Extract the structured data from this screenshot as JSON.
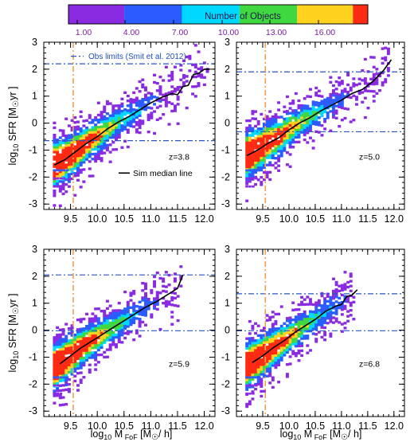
{
  "colorbar": {
    "title": "Number of Objects",
    "tick_labels": [
      "1.00",
      "4.00",
      "7.00",
      "10.00",
      "13.00",
      "16.00"
    ],
    "colors": [
      "#8a2be2",
      "#2a5cff",
      "#00d8ff",
      "#40d840",
      "#ffd21f",
      "#ff2a12"
    ]
  },
  "axes": {
    "ylabel_prefix": "log",
    "ylabel_sub": "10",
    "ylabel_main": " SFR [M",
    "ylabel_sun": "☉",
    "ylabel_tail": "yr ]",
    "xlabel_prefix": "log",
    "xlabel_sub": "10",
    "xlabel_main": " M",
    "xlabel_msub": " FoF",
    "xlabel_tail": " [M",
    "xlabel_sun": "☉",
    "xlabel_end": "/ h]",
    "xticks": [
      "9.5",
      "10.0",
      "10.5",
      "11.0",
      "11.5",
      "12.0"
    ],
    "yticks": [
      "-3",
      "-2",
      "-1",
      "0",
      "1",
      "2",
      "3"
    ]
  },
  "legend": {
    "obs_label": "Obs limits (Smit et al. 2012)",
    "sim_label": "Sim median line"
  },
  "chart_data": [
    {
      "type": "heatmap",
      "redshift_label": "z=3.8",
      "xlim": [
        9.0,
        12.2
      ],
      "ylim": [
        -3.2,
        3.0
      ],
      "vertical_line_x": 9.55,
      "obs_limits_y": [
        2.2,
        -0.65
      ],
      "median_line": {
        "x": [
          9.2,
          9.4,
          9.6,
          9.8,
          10.0,
          10.2,
          10.4,
          10.6,
          10.8,
          11.0,
          11.2,
          11.4,
          11.5,
          11.6,
          11.7,
          11.8,
          11.9,
          12.0,
          12.1
        ],
        "y": [
          -1.55,
          -1.35,
          -1.05,
          -0.75,
          -0.5,
          -0.2,
          0.05,
          0.25,
          0.5,
          0.75,
          0.95,
          1.1,
          1.05,
          1.35,
          1.4,
          1.8,
          1.85,
          2.0,
          2.0
        ]
      }
    },
    {
      "type": "heatmap",
      "redshift_label": "z=5.0",
      "xlim": [
        9.0,
        12.2
      ],
      "ylim": [
        -3.2,
        3.0
      ],
      "vertical_line_x": 9.55,
      "obs_limits_y": [
        1.9,
        -0.32
      ],
      "median_line": {
        "x": [
          9.2,
          9.4,
          9.6,
          9.8,
          10.0,
          10.2,
          10.4,
          10.6,
          10.8,
          11.0,
          11.2,
          11.4,
          11.6,
          11.8,
          11.95
        ],
        "y": [
          -1.2,
          -1.0,
          -0.75,
          -0.55,
          -0.25,
          0.0,
          0.2,
          0.45,
          0.65,
          0.85,
          1.1,
          1.25,
          1.55,
          1.95,
          2.35
        ]
      }
    },
    {
      "type": "heatmap",
      "redshift_label": "z=5.9",
      "xlim": [
        9.0,
        12.2
      ],
      "ylim": [
        -3.2,
        3.0
      ],
      "vertical_line_x": 9.55,
      "obs_limits_y": [
        2.05,
        -0.02
      ],
      "median_line": {
        "x": [
          9.3,
          9.5,
          9.7,
          9.9,
          10.1,
          10.3,
          10.5,
          10.7,
          10.9,
          11.1,
          11.3,
          11.5,
          11.6
        ],
        "y": [
          -1.25,
          -0.95,
          -0.65,
          -0.4,
          -0.15,
          0.1,
          0.35,
          0.6,
          0.85,
          1.05,
          1.3,
          1.55,
          2.05
        ]
      }
    },
    {
      "type": "heatmap",
      "redshift_label": "z=6.8",
      "xlim": [
        9.0,
        12.2
      ],
      "ylim": [
        -3.2,
        3.0
      ],
      "vertical_line_x": 9.55,
      "obs_limits_y": [
        1.35,
        -0.02
      ],
      "median_line": {
        "x": [
          9.3,
          9.5,
          9.7,
          9.9,
          10.1,
          10.3,
          10.5,
          10.7,
          10.9,
          11.0,
          11.1,
          11.2,
          11.3
        ],
        "y": [
          -1.2,
          -0.95,
          -0.65,
          -0.4,
          -0.1,
          0.15,
          0.4,
          0.7,
          0.9,
          0.95,
          1.25,
          1.3,
          1.5
        ]
      }
    }
  ]
}
